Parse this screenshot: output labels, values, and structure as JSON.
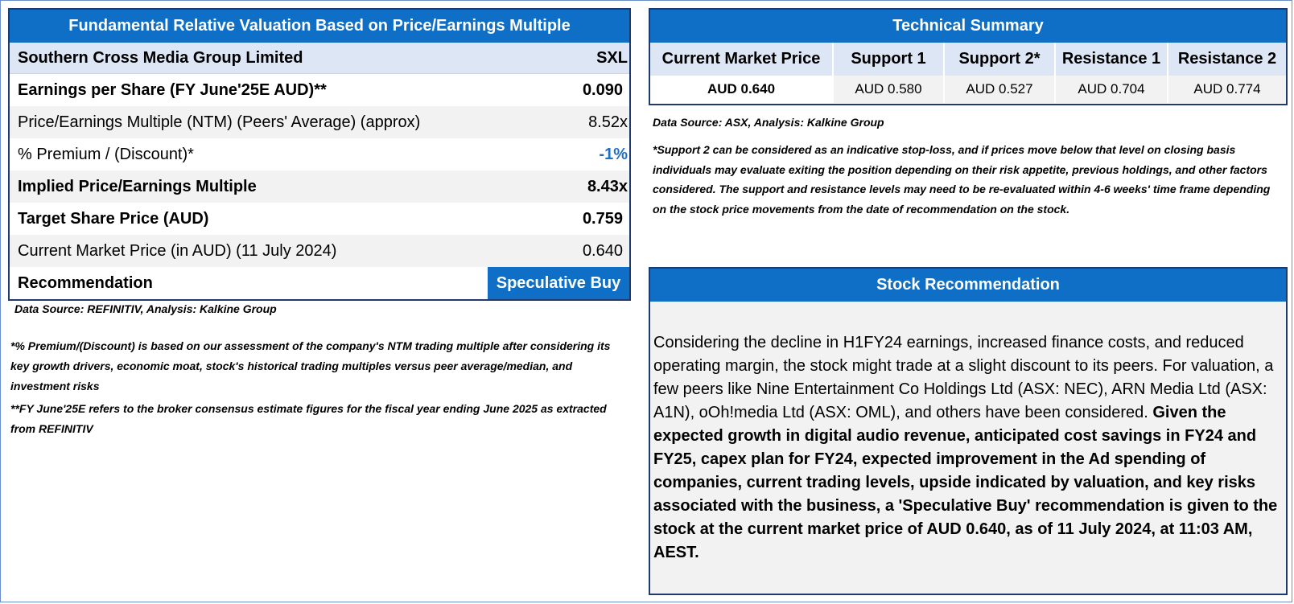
{
  "valuation": {
    "title": "Fundamental Relative Valuation Based on Price/Earnings Multiple",
    "company": "Southern Cross Media Group Limited",
    "ticker": "SXL",
    "rows": [
      {
        "label": "Earnings per Share (FY June'25E AUD)**",
        "value": "0.090",
        "bold": true,
        "grey": false
      },
      {
        "label": "Price/Earnings Multiple (NTM)  (Peers' Average) (approx)",
        "value": "8.52x",
        "bold": false,
        "grey": true
      },
      {
        "label": "% Premium / (Discount)*",
        "value": "-1%",
        "bold": false,
        "grey": false
      },
      {
        "label": "Implied Price/Earnings Multiple",
        "value": "8.43x",
        "bold": true,
        "grey": true
      },
      {
        "label": "Target Share Price (AUD)",
        "value": "0.759",
        "bold": true,
        "grey": false
      },
      {
        "label": "Current Market Price (in AUD) (11 July 2024)",
        "value": "0.640",
        "bold": false,
        "grey": true
      }
    ],
    "recommendation_label": "Recommendation",
    "recommendation_value": "Speculative Buy",
    "source": "Data Source: REFINITIV, Analysis: Kalkine Group",
    "note1": "*% Premium/(Discount) is based on our assessment of the company's NTM trading multiple after considering its key growth drivers, economic moat, stock's historical trading multiples versus peer average/median, and investment risks",
    "note2": "**FY June'25E refers to the broker consensus estimate figures for the fiscal year ending June 2025  as extracted from REFINITIV"
  },
  "technical": {
    "title": "Technical Summary",
    "headers": [
      "Current Market Price",
      "Support 1",
      "Support 2*",
      "Resistance 1",
      "Resistance 2"
    ],
    "values": [
      "AUD 0.640",
      "AUD 0.580",
      "AUD 0.527",
      "AUD 0.704",
      "AUD 0.774"
    ],
    "source": "Data Source: ASX, Analysis: Kalkine Group",
    "note": "*Support 2 can be considered as an indicative stop-loss, and if prices move below that level on closing basis individuals may evaluate exiting the position depending on their risk appetite, previous holdings, and other factors considered. The support and resistance levels may need to be re-evaluated within 4-6 weeks' time frame depending on the stock price movements from the date of recommendation on the stock."
  },
  "recommendation": {
    "title": "Stock Recommendation",
    "text_normal": "Considering the decline in H1FY24 earnings, increased finance costs, and reduced operating margin, the stock might trade at a slight discount to its peers. For valuation, a few peers like Nine Entertainment Co Holdings Ltd (ASX: NEC), ARN Media Ltd (ASX: A1N), oOh!media Ltd (ASX: OML), and others have been considered. ",
    "text_bold": "Given the expected growth in digital audio revenue, anticipated cost savings in FY24 and FY25, capex plan for FY24, expected improvement in the Ad spending of companies, current trading levels, upside indicated by valuation, and key risks associated with the business, a 'Speculative Buy' recommendation is given to the stock at the current market price of AUD 0.640, as of 11 July 2024, at 11:03 AM, AEST."
  },
  "colors": {
    "accent": "#0f6fc6",
    "header_fill": "#dce6f4",
    "row_grey": "#f2f2f2",
    "border": "#1f3a6e",
    "discount_text": "#1f6fc6"
  }
}
